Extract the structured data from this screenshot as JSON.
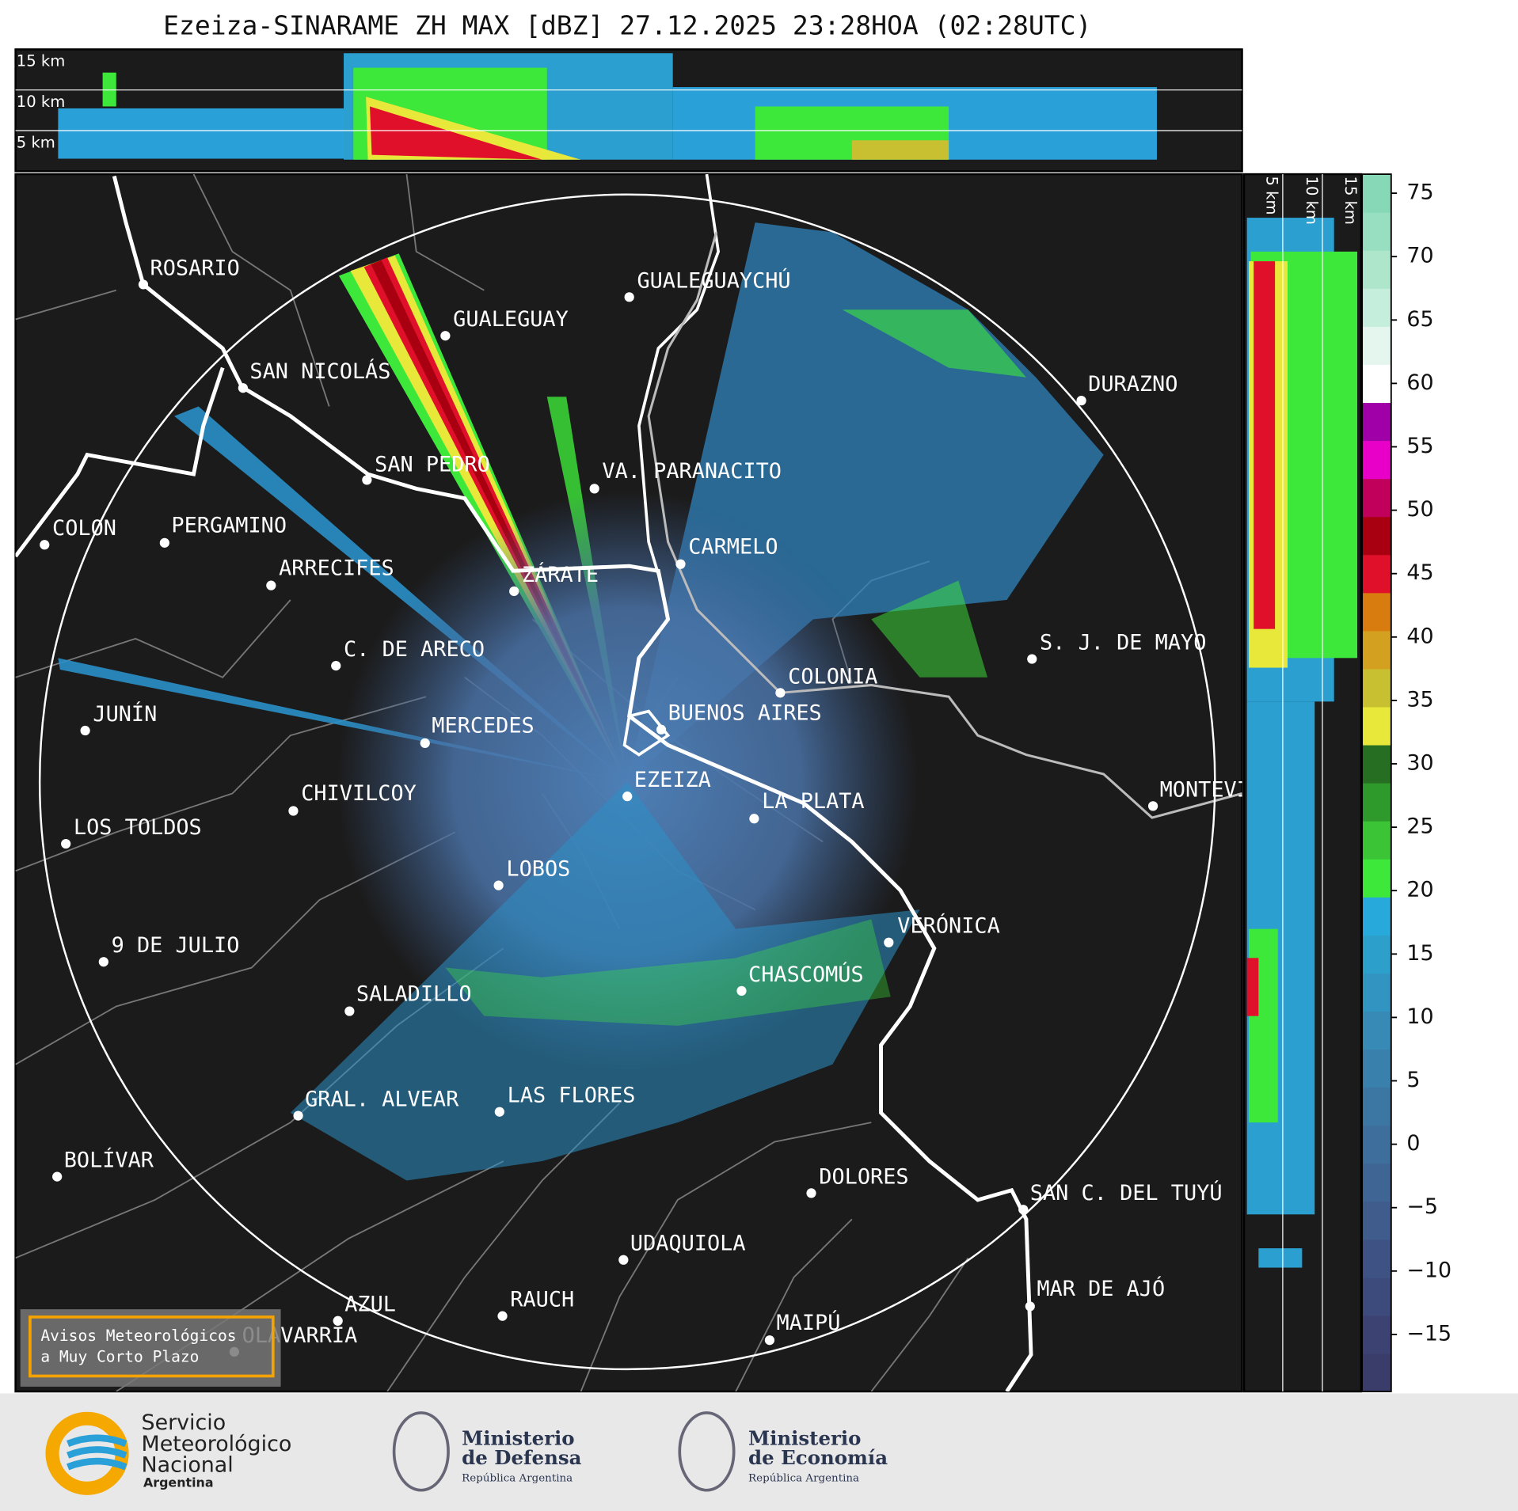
{
  "title": "Ezeiza-SINARAME ZH MAX [dBZ] 27.12.2025 23:28HOA (02:28UTC)",
  "top_panel": {
    "height_labels": [
      "15 km",
      "10 km",
      "5 km"
    ]
  },
  "side_panel": {
    "height_labels": [
      "5 km",
      "10 km",
      "15 km"
    ]
  },
  "map": {
    "cities": [
      "ROSARIO",
      "GUALEGUAYCHÚ",
      "GUALEGUAY",
      "SAN NICOLÁS",
      "DURAZNO",
      "SAN PEDRO",
      "VA. PARANACITO",
      "COLON",
      "PERGAMINO",
      "CARMELO",
      "ARRECIFES",
      "ZÁRATE",
      "S. J. DE MAYO",
      "C. DE ARECO",
      "COLONIA",
      "BUENOS AIRES",
      "JUNÍN",
      "MERCEDES",
      "EZEIZA",
      "MONTEVIDEO",
      "CHIVILCOY",
      "LA PLATA",
      "LOS TOLDOS",
      "LOBOS",
      "VERÓNICA",
      "9 DE JULIO",
      "CHASCOMÚS",
      "SALADILLO",
      "GRAL. ALVEAR",
      "LAS FLORES",
      "BOLÍVAR",
      "DOLORES",
      "SAN C. DEL TUYÚ",
      "UDAQUIOLA",
      "MAR DE AJÓ",
      "RAUCH",
      "AZUL",
      "OLAVARRÍA",
      "MAIPÚ"
    ]
  },
  "colorbar": {
    "lim": [
      -19.5,
      76.5
    ],
    "ticks": [
      75,
      70,
      65,
      60,
      55,
      50,
      45,
      40,
      35,
      30,
      25,
      20,
      15,
      10,
      5,
      0,
      {
        "value": -5,
        "label": "−5"
      },
      {
        "value": -10,
        "label": "−10"
      },
      {
        "value": -15,
        "label": "−15"
      }
    ],
    "colors": [
      "#3a3d6a",
      "#3c4272",
      "#3d4a7c",
      "#3e5384",
      "#3f5c8c",
      "#3f6594",
      "#3e6e9c",
      "#3c77a4",
      "#3a80ad",
      "#378ab6",
      "#3294c0",
      "#2c9fcb",
      "#27aadb",
      "#3ee83a",
      "#3cc437",
      "#2f9a2c",
      "#266f22",
      "#e8e83a",
      "#c8c030",
      "#d4a020",
      "#d87c10",
      "#e0102a",
      "#a80010",
      "#c0005a",
      "#e800c8",
      "#a000a8",
      "#ffffff",
      "#e4f6ee",
      "#c6eedc",
      "#aee6cc",
      "#98dec0",
      "#86d8b6"
    ]
  },
  "notice": {
    "lines": [
      "Avisos Meteorológicos",
      "a Muy Corto Plazo"
    ]
  },
  "logos": {
    "smn": [
      "Servicio",
      "Meteorológico",
      "Nacional",
      "Argentina"
    ],
    "defensa": [
      "Ministerio",
      "de Defensa",
      "República Argentina"
    ],
    "economia": [
      "Ministerio",
      "de Economía",
      "República Argentina"
    ]
  }
}
